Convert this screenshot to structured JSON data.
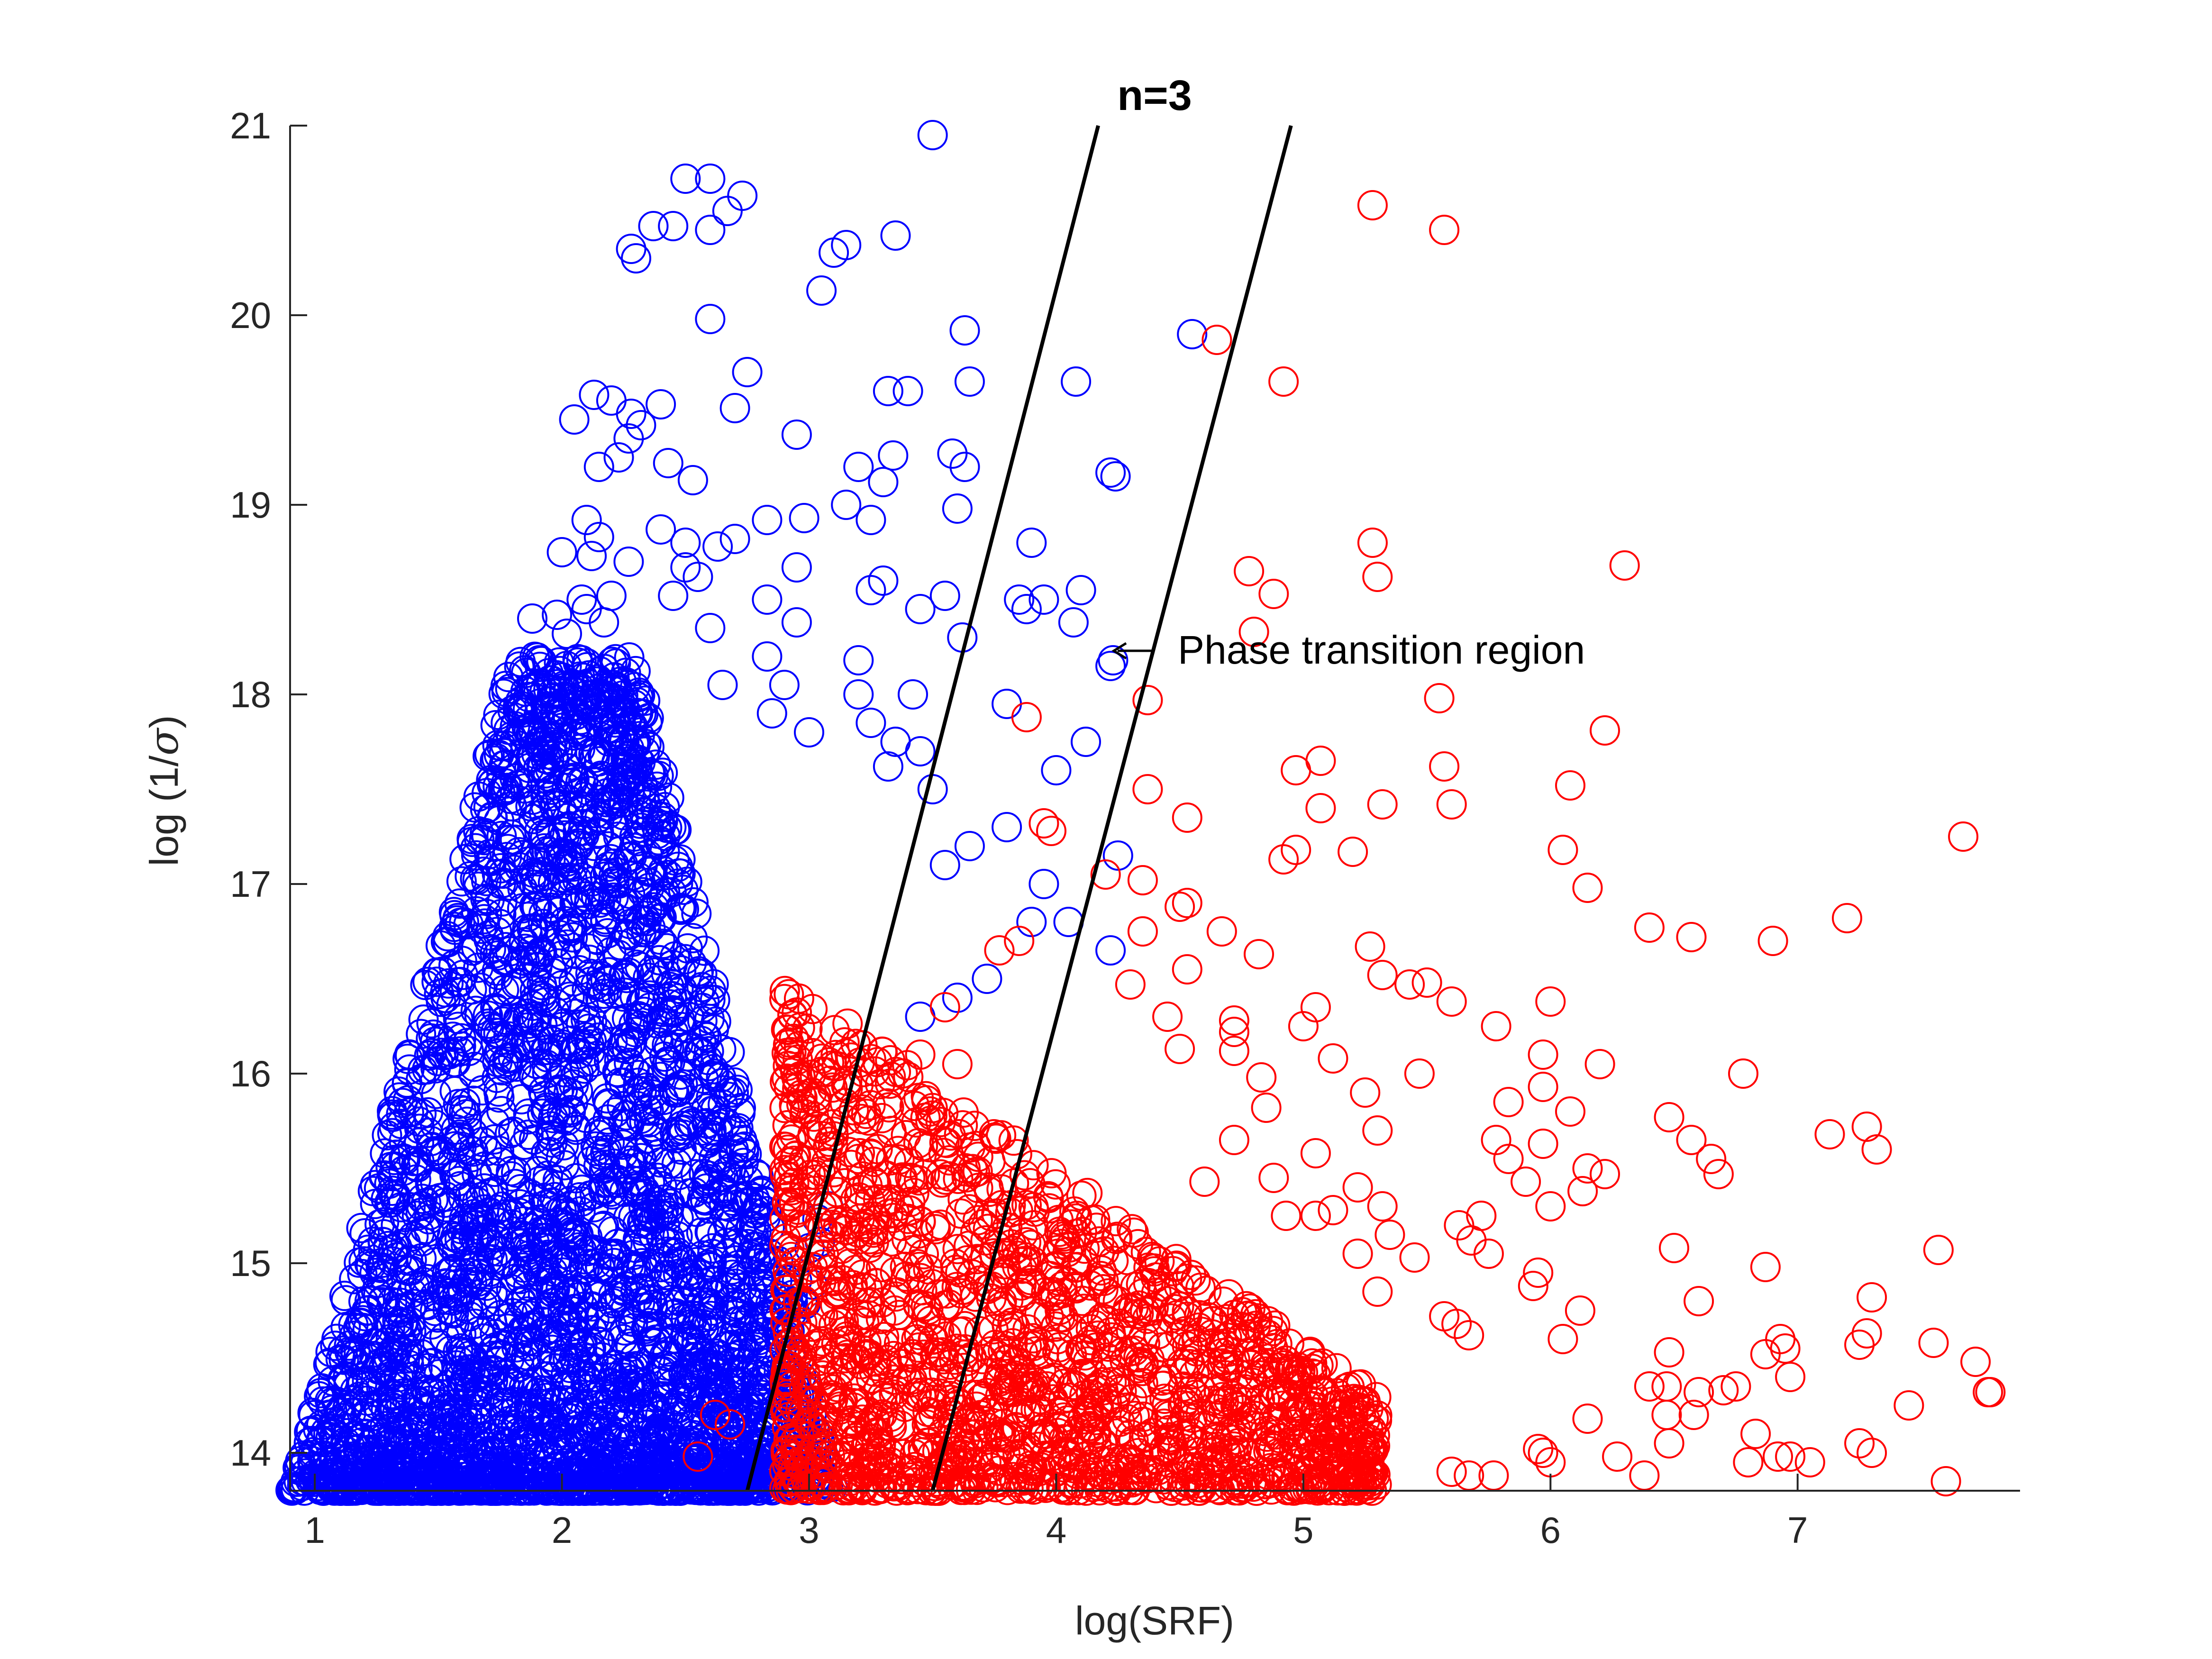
{
  "chart_data": {
    "type": "scatter",
    "title": "n=3",
    "xlabel": "log(SRF)",
    "ylabel_prefix": "log (1/",
    "ylabel_sigma": "σ",
    "ylabel_suffix": ")",
    "xlim": [
      0.9,
      7.9
    ],
    "ylim": [
      13.8,
      21
    ],
    "xticks": [
      1,
      2,
      3,
      4,
      5,
      6,
      7
    ],
    "yticks": [
      14,
      15,
      16,
      17,
      18,
      19,
      20,
      21
    ],
    "xtick_labels": [
      "1",
      "2",
      "3",
      "4",
      "5",
      "6",
      "7"
    ],
    "ytick_labels": [
      "14",
      "15",
      "16",
      "17",
      "18",
      "19",
      "20",
      "21"
    ],
    "grid": false,
    "colors": {
      "blue": "#0000ff",
      "red": "#ff0000",
      "line": "#000000",
      "axis": "#262626"
    },
    "boundary_lines": [
      {
        "x": [
          2.75,
          4.17
        ],
        "y": [
          13.8,
          21
        ]
      },
      {
        "x": [
          3.5,
          4.95
        ],
        "y": [
          13.8,
          21
        ]
      }
    ],
    "annotation": {
      "text": "Phase transition region",
      "arrow_to": [
        4.25,
        18.23
      ]
    },
    "series": [
      {
        "color": "blue",
        "points": [
          [
            3.5,
            20.95
          ],
          [
            2.5,
            20.72
          ],
          [
            2.6,
            20.72
          ],
          [
            2.73,
            20.63
          ],
          [
            2.67,
            20.55
          ],
          [
            2.37,
            20.47
          ],
          [
            2.45,
            20.47
          ],
          [
            2.6,
            20.45
          ],
          [
            3.35,
            20.42
          ],
          [
            3.15,
            20.37
          ],
          [
            3.1,
            20.33
          ],
          [
            2.28,
            20.35
          ],
          [
            2.3,
            20.3
          ],
          [
            3.05,
            20.13
          ],
          [
            2.6,
            19.98
          ],
          [
            3.63,
            19.92
          ],
          [
            4.55,
            19.9
          ],
          [
            2.75,
            19.7
          ],
          [
            4.08,
            19.65
          ],
          [
            3.65,
            19.65
          ],
          [
            3.4,
            19.6
          ],
          [
            3.32,
            19.6
          ],
          [
            2.13,
            19.58
          ],
          [
            2.2,
            19.55
          ],
          [
            2.4,
            19.53
          ],
          [
            2.28,
            19.48
          ],
          [
            2.7,
            19.51
          ],
          [
            2.05,
            19.45
          ],
          [
            2.32,
            19.42
          ],
          [
            2.27,
            19.35
          ],
          [
            2.95,
            19.37
          ],
          [
            3.58,
            19.27
          ],
          [
            3.34,
            19.26
          ],
          [
            2.23,
            19.25
          ],
          [
            2.15,
            19.2
          ],
          [
            3.63,
            19.2
          ],
          [
            2.43,
            19.22
          ],
          [
            3.2,
            19.2
          ],
          [
            4.22,
            19.17
          ],
          [
            4.24,
            19.15
          ],
          [
            2.53,
            19.13
          ],
          [
            3.3,
            19.12
          ],
          [
            3.15,
            19.0
          ],
          [
            3.6,
            18.98
          ],
          [
            2.98,
            18.93
          ],
          [
            2.83,
            18.92
          ],
          [
            2.1,
            18.92
          ],
          [
            2.4,
            18.87
          ],
          [
            3.25,
            18.92
          ],
          [
            2.7,
            18.82
          ],
          [
            2.63,
            18.78
          ],
          [
            2.15,
            18.83
          ],
          [
            2.5,
            18.8
          ],
          [
            2.0,
            18.75
          ],
          [
            3.9,
            18.8
          ],
          [
            2.27,
            18.7
          ],
          [
            2.12,
            18.73
          ],
          [
            2.5,
            18.67
          ],
          [
            2.55,
            18.62
          ],
          [
            3.55,
            18.52
          ],
          [
            2.95,
            18.67
          ],
          [
            3.3,
            18.6
          ],
          [
            3.25,
            18.55
          ],
          [
            4.1,
            18.55
          ],
          [
            3.95,
            18.5
          ],
          [
            3.85,
            18.5
          ],
          [
            3.88,
            18.45
          ],
          [
            3.45,
            18.45
          ],
          [
            2.45,
            18.52
          ],
          [
            2.83,
            18.5
          ],
          [
            2.08,
            18.5
          ],
          [
            2.1,
            18.45
          ],
          [
            2.2,
            18.52
          ],
          [
            1.88,
            18.4
          ],
          [
            1.98,
            18.42
          ],
          [
            2.17,
            18.38
          ],
          [
            2.02,
            18.32
          ],
          [
            2.6,
            18.35
          ],
          [
            2.95,
            18.38
          ],
          [
            2.83,
            18.2
          ],
          [
            4.07,
            18.38
          ],
          [
            3.62,
            18.3
          ],
          [
            4.23,
            18.18
          ],
          [
            4.22,
            18.15
          ],
          [
            3.2,
            18.18
          ],
          [
            3.2,
            18.0
          ],
          [
            3.42,
            18.0
          ],
          [
            3.8,
            17.95
          ],
          [
            2.9,
            18.05
          ],
          [
            2.65,
            18.05
          ],
          [
            2.85,
            17.9
          ],
          [
            3.0,
            17.8
          ],
          [
            3.25,
            17.85
          ],
          [
            4.12,
            17.75
          ],
          [
            3.35,
            17.75
          ],
          [
            3.45,
            17.7
          ],
          [
            3.5,
            17.5
          ],
          [
            4.0,
            17.6
          ],
          [
            3.32,
            17.62
          ],
          [
            4.25,
            17.15
          ],
          [
            3.8,
            17.3
          ],
          [
            3.65,
            17.2
          ],
          [
            3.55,
            17.1
          ],
          [
            3.95,
            17.0
          ],
          [
            3.9,
            16.8
          ],
          [
            4.05,
            16.8
          ],
          [
            3.72,
            16.5
          ],
          [
            4.22,
            16.65
          ],
          [
            3.6,
            16.4
          ],
          [
            3.45,
            16.3
          ]
        ],
        "dense_region": {
          "x_min": 0.9,
          "x_max_bottom": 3.1,
          "x_max_top": 2.3,
          "y_min": 13.8,
          "y_max": 18.2,
          "apex_x": 1.8
        }
      },
      {
        "color": "red",
        "points": [
          [
            5.28,
            20.58
          ],
          [
            5.57,
            20.45
          ],
          [
            4.65,
            19.87
          ],
          [
            4.92,
            19.65
          ],
          [
            5.28,
            18.8
          ],
          [
            6.3,
            18.68
          ],
          [
            4.78,
            18.65
          ],
          [
            5.3,
            18.62
          ],
          [
            4.88,
            18.53
          ],
          [
            4.8,
            18.33
          ],
          [
            4.37,
            17.97
          ],
          [
            5.55,
            17.98
          ],
          [
            3.88,
            17.88
          ],
          [
            6.22,
            17.81
          ],
          [
            5.07,
            17.65
          ],
          [
            4.97,
            17.6
          ],
          [
            5.57,
            17.62
          ],
          [
            6.08,
            17.52
          ],
          [
            4.37,
            17.5
          ],
          [
            5.32,
            17.42
          ],
          [
            5.6,
            17.42
          ],
          [
            5.07,
            17.4
          ],
          [
            4.53,
            17.35
          ],
          [
            3.95,
            17.32
          ],
          [
            3.98,
            17.28
          ],
          [
            7.67,
            17.25
          ],
          [
            6.05,
            17.18
          ],
          [
            4.92,
            17.13
          ],
          [
            4.97,
            17.18
          ],
          [
            5.2,
            17.17
          ],
          [
            4.2,
            17.05
          ],
          [
            4.35,
            17.02
          ],
          [
            6.15,
            16.98
          ],
          [
            4.5,
            16.88
          ],
          [
            4.53,
            16.9
          ],
          [
            7.2,
            16.82
          ],
          [
            6.4,
            16.77
          ],
          [
            6.57,
            16.72
          ],
          [
            6.9,
            16.7
          ],
          [
            5.27,
            16.67
          ],
          [
            4.67,
            16.75
          ],
          [
            4.82,
            16.63
          ],
          [
            3.77,
            16.65
          ],
          [
            3.85,
            16.7
          ],
          [
            4.35,
            16.75
          ],
          [
            5.43,
            16.47
          ],
          [
            5.5,
            16.48
          ],
          [
            5.32,
            16.52
          ],
          [
            4.3,
            16.47
          ],
          [
            4.53,
            16.55
          ],
          [
            6.0,
            16.38
          ],
          [
            5.6,
            16.38
          ],
          [
            5.05,
            16.35
          ],
          [
            4.72,
            16.28
          ],
          [
            4.72,
            16.22
          ],
          [
            4.45,
            16.3
          ],
          [
            5.78,
            16.25
          ],
          [
            4.5,
            16.13
          ],
          [
            4.72,
            16.12
          ],
          [
            5.0,
            16.25
          ],
          [
            5.97,
            16.1
          ],
          [
            6.2,
            16.05
          ],
          [
            5.12,
            16.08
          ],
          [
            6.78,
            16.0
          ],
          [
            5.47,
            16.0
          ],
          [
            4.83,
            15.98
          ],
          [
            5.25,
            15.9
          ],
          [
            5.97,
            15.93
          ],
          [
            5.83,
            15.85
          ],
          [
            4.85,
            15.82
          ],
          [
            6.08,
            15.8
          ],
          [
            6.48,
            15.77
          ],
          [
            7.28,
            15.72
          ],
          [
            7.13,
            15.68
          ],
          [
            5.3,
            15.7
          ],
          [
            5.78,
            15.65
          ],
          [
            5.97,
            15.63
          ],
          [
            6.57,
            15.65
          ],
          [
            4.72,
            15.65
          ],
          [
            7.32,
            15.6
          ],
          [
            5.05,
            15.58
          ],
          [
            6.65,
            15.55
          ],
          [
            5.83,
            15.55
          ],
          [
            6.15,
            15.5
          ],
          [
            6.22,
            15.47
          ],
          [
            6.68,
            15.47
          ],
          [
            5.9,
            15.43
          ],
          [
            4.88,
            15.45
          ],
          [
            4.6,
            15.43
          ],
          [
            5.22,
            15.4
          ],
          [
            6.13,
            15.38
          ],
          [
            6.0,
            15.3
          ],
          [
            5.32,
            15.3
          ],
          [
            5.12,
            15.28
          ],
          [
            5.05,
            15.25
          ],
          [
            4.93,
            15.25
          ],
          [
            5.63,
            15.2
          ],
          [
            5.72,
            15.25
          ],
          [
            5.35,
            15.15
          ],
          [
            5.68,
            15.12
          ],
          [
            5.22,
            15.05
          ],
          [
            5.45,
            15.03
          ],
          [
            6.5,
            15.08
          ],
          [
            7.57,
            15.07
          ],
          [
            5.75,
            15.05
          ],
          [
            6.87,
            14.98
          ],
          [
            5.95,
            14.95
          ],
          [
            5.93,
            14.88
          ],
          [
            5.3,
            14.85
          ],
          [
            7.3,
            14.82
          ],
          [
            6.6,
            14.8
          ],
          [
            6.12,
            14.75
          ],
          [
            5.57,
            14.72
          ],
          [
            5.62,
            14.68
          ],
          [
            5.67,
            14.62
          ],
          [
            6.93,
            14.6
          ],
          [
            6.05,
            14.6
          ],
          [
            7.28,
            14.63
          ],
          [
            6.95,
            14.55
          ],
          [
            7.25,
            14.57
          ],
          [
            7.55,
            14.58
          ],
          [
            6.87,
            14.52
          ],
          [
            6.48,
            14.53
          ],
          [
            7.72,
            14.48
          ],
          [
            6.97,
            14.4
          ],
          [
            6.4,
            14.35
          ],
          [
            6.47,
            14.35
          ],
          [
            6.6,
            14.32
          ],
          [
            6.7,
            14.33
          ],
          [
            6.75,
            14.35
          ],
          [
            7.77,
            14.32
          ],
          [
            7.78,
            14.32
          ],
          [
            7.45,
            14.25
          ],
          [
            6.15,
            14.18
          ],
          [
            6.47,
            14.2
          ],
          [
            6.58,
            14.2
          ],
          [
            6.83,
            14.1
          ],
          [
            7.25,
            14.05
          ],
          [
            7.3,
            14.0
          ],
          [
            6.48,
            14.05
          ],
          [
            5.95,
            14.02
          ],
          [
            5.97,
            14.0
          ],
          [
            6.0,
            13.95
          ],
          [
            6.27,
            13.98
          ],
          [
            6.8,
            13.95
          ],
          [
            6.92,
            13.98
          ],
          [
            6.97,
            13.98
          ],
          [
            7.05,
            13.95
          ],
          [
            6.38,
            13.88
          ],
          [
            7.6,
            13.85
          ],
          [
            5.67,
            13.88
          ],
          [
            5.6,
            13.9
          ],
          [
            5.77,
            13.88
          ],
          [
            5.2,
            13.9
          ],
          [
            5.27,
            13.92
          ],
          [
            2.62,
            14.2
          ],
          [
            2.68,
            14.15
          ],
          [
            2.55,
            13.98
          ],
          [
            3.1,
            15.48
          ],
          [
            3.2,
            15.55
          ],
          [
            3.55,
            16.35
          ],
          [
            3.45,
            16.1
          ],
          [
            3.6,
            16.05
          ]
        ],
        "dense_region": {
          "x_min": 2.9,
          "x_max": 5.3,
          "y_min": 13.8,
          "y_max_at_left": 16.5,
          "y_max_at_right": 14.3
        }
      }
    ]
  }
}
